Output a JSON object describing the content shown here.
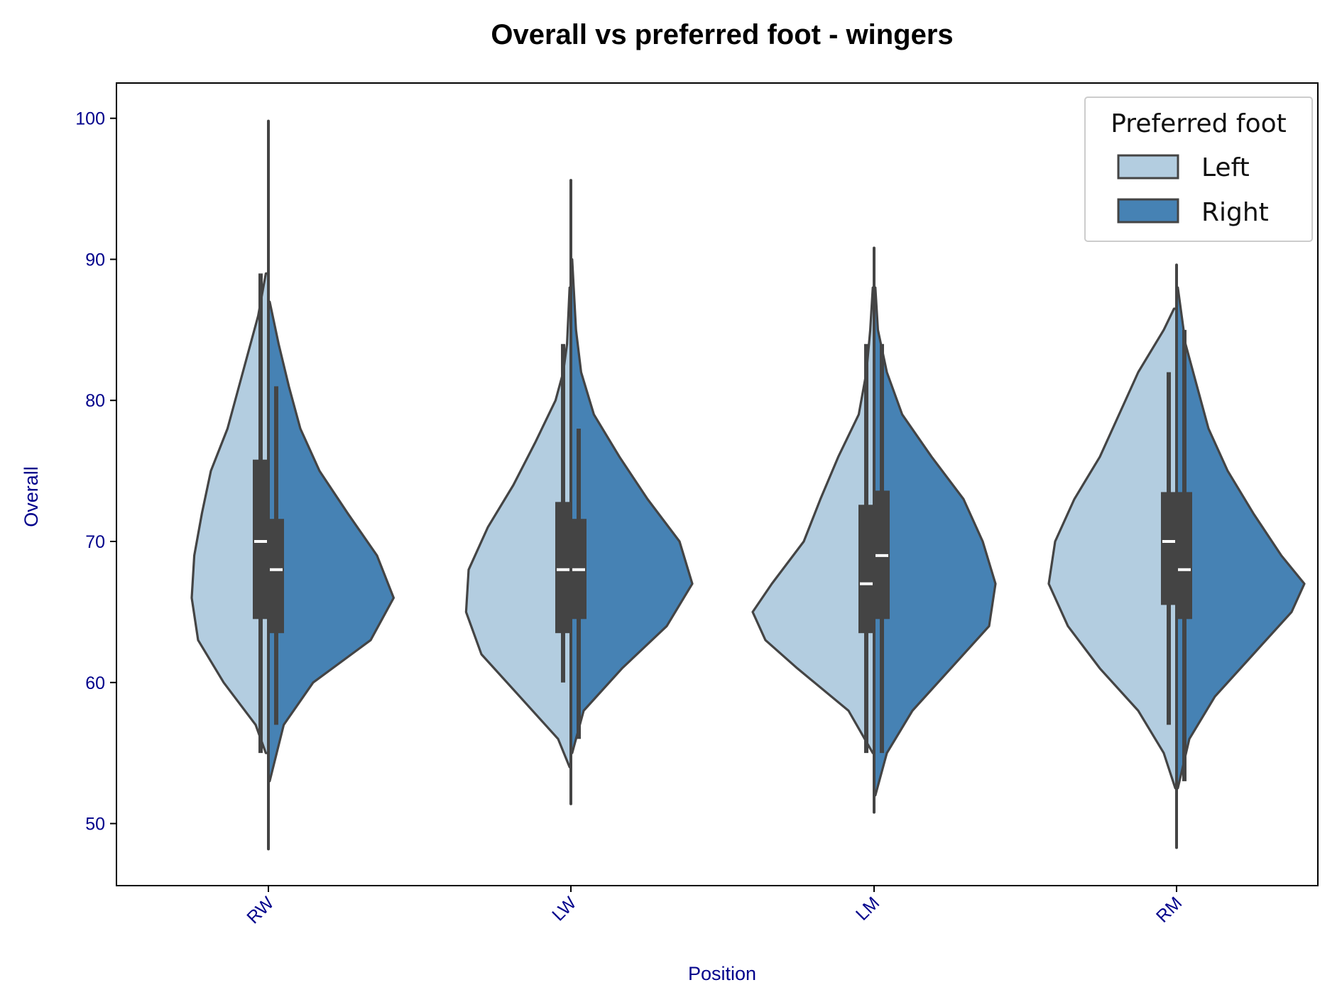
{
  "chart_data": {
    "type": "violin",
    "title": "Overall vs preferred foot - wingers",
    "xlabel": "Position",
    "ylabel": "Overall",
    "categories": [
      "RW",
      "LW",
      "LM",
      "RM"
    ],
    "ylim": [
      45.6,
      102.5
    ],
    "yticks": [
      50,
      60,
      70,
      80,
      90,
      100
    ],
    "grid": false,
    "legend": {
      "title": "Preferred foot",
      "placement": "top-right"
    },
    "series": [
      {
        "name": "Left",
        "color": "#b3cde0",
        "groups": [
          {
            "category": "RW",
            "min": 55,
            "q1": 64.5,
            "median": 70,
            "q3": 75.8,
            "max": 89,
            "density": [
              [
                55,
                0.02
              ],
              [
                57,
                0.1
              ],
              [
                60,
                0.35
              ],
              [
                63,
                0.55
              ],
              [
                66,
                0.6
              ],
              [
                69,
                0.58
              ],
              [
                72,
                0.52
              ],
              [
                75,
                0.45
              ],
              [
                78,
                0.32
              ],
              [
                82,
                0.2
              ],
              [
                86,
                0.08
              ],
              [
                89,
                0.02
              ]
            ]
          },
          {
            "category": "LW",
            "min": 60,
            "q1": 63.5,
            "median": 68,
            "q3": 72.8,
            "max": 84,
            "density": [
              [
                54,
                0.01
              ],
              [
                56,
                0.1
              ],
              [
                59,
                0.4
              ],
              [
                62,
                0.7
              ],
              [
                65,
                0.82
              ],
              [
                68,
                0.8
              ],
              [
                71,
                0.65
              ],
              [
                74,
                0.45
              ],
              [
                77,
                0.28
              ],
              [
                80,
                0.12
              ],
              [
                82,
                0.06
              ],
              [
                84,
                0.03
              ],
              [
                88,
                0.01
              ]
            ]
          },
          {
            "category": "LM",
            "min": 55,
            "q1": 63.5,
            "median": 67,
            "q3": 72.6,
            "max": 84,
            "density": [
              [
                55,
                0.01
              ],
              [
                58,
                0.2
              ],
              [
                61,
                0.6
              ],
              [
                63,
                0.85
              ],
              [
                65,
                0.95
              ],
              [
                67,
                0.8
              ],
              [
                70,
                0.55
              ],
              [
                73,
                0.42
              ],
              [
                76,
                0.28
              ],
              [
                79,
                0.12
              ],
              [
                82,
                0.06
              ],
              [
                85,
                0.03
              ],
              [
                88,
                0.01
              ]
            ]
          },
          {
            "category": "RM",
            "min": 57,
            "q1": 65.5,
            "median": 70,
            "q3": 73.5,
            "max": 82,
            "density": [
              [
                52.5,
                0.01
              ],
              [
                55,
                0.1
              ],
              [
                58,
                0.3
              ],
              [
                61,
                0.6
              ],
              [
                64,
                0.85
              ],
              [
                67,
                1.0
              ],
              [
                70,
                0.95
              ],
              [
                73,
                0.8
              ],
              [
                76,
                0.6
              ],
              [
                79,
                0.45
              ],
              [
                82,
                0.3
              ],
              [
                85,
                0.1
              ],
              [
                86.5,
                0.02
              ]
            ]
          }
        ]
      },
      {
        "name": "Right",
        "color": "#4682b4",
        "groups": [
          {
            "category": "RW",
            "min": 57,
            "q1": 63.5,
            "median": 68,
            "q3": 71.6,
            "max": 81,
            "density": [
              [
                53,
                0.01
              ],
              [
                57,
                0.12
              ],
              [
                60,
                0.35
              ],
              [
                63,
                0.8
              ],
              [
                66,
                0.98
              ],
              [
                69,
                0.85
              ],
              [
                72,
                0.62
              ],
              [
                75,
                0.4
              ],
              [
                78,
                0.25
              ],
              [
                81,
                0.16
              ],
              [
                84,
                0.08
              ],
              [
                87,
                0.01
              ]
            ]
          },
          {
            "category": "LW",
            "min": 56,
            "q1": 64.5,
            "median": 68,
            "q3": 71.6,
            "max": 78,
            "density": [
              [
                55,
                0.01
              ],
              [
                58,
                0.1
              ],
              [
                61,
                0.4
              ],
              [
                64,
                0.75
              ],
              [
                67,
                0.95
              ],
              [
                70,
                0.85
              ],
              [
                73,
                0.6
              ],
              [
                76,
                0.38
              ],
              [
                79,
                0.18
              ],
              [
                82,
                0.08
              ],
              [
                85,
                0.04
              ],
              [
                90,
                0.01
              ]
            ]
          },
          {
            "category": "LM",
            "min": 55,
            "q1": 64.5,
            "median": 69,
            "q3": 73.6,
            "max": 84,
            "density": [
              [
                52,
                0.01
              ],
              [
                55,
                0.1
              ],
              [
                58,
                0.3
              ],
              [
                61,
                0.6
              ],
              [
                64,
                0.9
              ],
              [
                67,
                0.95
              ],
              [
                70,
                0.85
              ],
              [
                73,
                0.7
              ],
              [
                76,
                0.45
              ],
              [
                79,
                0.22
              ],
              [
                82,
                0.1
              ],
              [
                85,
                0.03
              ],
              [
                88,
                0.01
              ]
            ]
          },
          {
            "category": "RM",
            "min": 53,
            "q1": 64.5,
            "median": 68,
            "q3": 73.5,
            "max": 85,
            "density": [
              [
                52.5,
                0.01
              ],
              [
                56,
                0.1
              ],
              [
                59,
                0.3
              ],
              [
                62,
                0.6
              ],
              [
                65,
                0.9
              ],
              [
                67,
                1.0
              ],
              [
                69,
                0.82
              ],
              [
                72,
                0.6
              ],
              [
                75,
                0.4
              ],
              [
                78,
                0.25
              ],
              [
                81,
                0.16
              ],
              [
                84,
                0.07
              ],
              [
                88,
                0.01
              ]
            ]
          }
        ]
      }
    ],
    "outer_tails": [
      {
        "category": "RW",
        "low": 48.2,
        "high": 99.8
      },
      {
        "category": "LW",
        "low": 51.4,
        "high": 95.6
      },
      {
        "category": "LM",
        "low": 50.8,
        "high": 90.8
      },
      {
        "category": "RM",
        "low": 48.3,
        "high": 89.6
      }
    ]
  }
}
